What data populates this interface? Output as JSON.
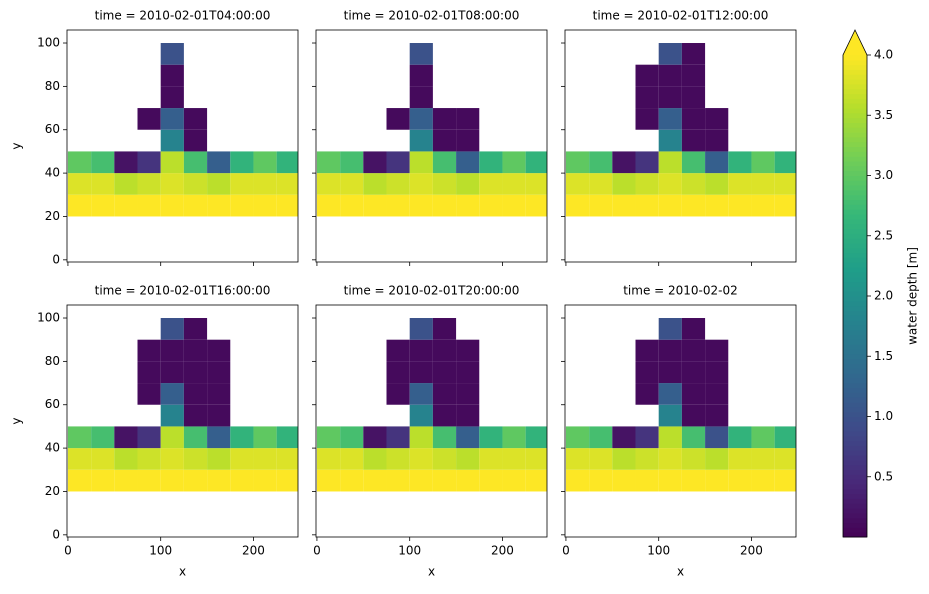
{
  "chart_data": [
    {
      "type": "heatmap",
      "title": "time = 2010-02-01T04:00:00",
      "y_label": "y",
      "xlim": [
        -1,
        248
      ],
      "ylim": [
        -1,
        106
      ],
      "xticks": [
        0,
        100,
        200
      ],
      "yticks": [
        0,
        20,
        40,
        60,
        80,
        100
      ],
      "x_bins": [
        0,
        25,
        50,
        75,
        100,
        125,
        150,
        175,
        200,
        225,
        250
      ],
      "y_bins": [
        20,
        30,
        40,
        50,
        60,
        70,
        80,
        90,
        100
      ],
      "z": [
        [
          4,
          4,
          4,
          4,
          4,
          4,
          4,
          4,
          4,
          4
        ],
        [
          3.8,
          3.8,
          3.6,
          3.7,
          3.8,
          3.7,
          3.6,
          3.8,
          3.8,
          3.8
        ],
        [
          3.0,
          2.8,
          0.2,
          0.6,
          3.6,
          2.8,
          1.2,
          2.6,
          3.0,
          2.6
        ],
        [
          null,
          null,
          null,
          null,
          1.8,
          0.1,
          null,
          null,
          null,
          null
        ],
        [
          null,
          null,
          null,
          0.1,
          1.2,
          0.1,
          null,
          null,
          null,
          null
        ],
        [
          null,
          null,
          null,
          null,
          0.1,
          null,
          null,
          null,
          null,
          null
        ],
        [
          null,
          null,
          null,
          null,
          0.1,
          null,
          null,
          null,
          null,
          null
        ],
        [
          null,
          null,
          null,
          null,
          1.0,
          null,
          null,
          null,
          null,
          null
        ]
      ]
    },
    {
      "type": "heatmap",
      "title": "time = 2010-02-01T08:00:00",
      "xlim": [
        -1,
        248
      ],
      "ylim": [
        -1,
        106
      ],
      "xticks": [
        0,
        100,
        200
      ],
      "yticks": [
        0,
        20,
        40,
        60,
        80,
        100
      ],
      "x_bins": [
        0,
        25,
        50,
        75,
        100,
        125,
        150,
        175,
        200,
        225,
        250
      ],
      "y_bins": [
        20,
        30,
        40,
        50,
        60,
        70,
        80,
        90,
        100
      ],
      "z": [
        [
          4,
          4,
          4,
          4,
          4,
          4,
          4,
          4,
          4,
          4
        ],
        [
          3.8,
          3.8,
          3.6,
          3.7,
          3.8,
          3.7,
          3.6,
          3.8,
          3.8,
          3.8
        ],
        [
          3.0,
          2.8,
          0.2,
          0.6,
          3.6,
          2.8,
          1.2,
          2.6,
          3.0,
          2.6
        ],
        [
          null,
          null,
          null,
          null,
          1.8,
          0.1,
          0.1,
          null,
          null,
          null
        ],
        [
          null,
          null,
          null,
          0.1,
          1.2,
          0.1,
          0.1,
          null,
          null,
          null
        ],
        [
          null,
          null,
          null,
          null,
          0.1,
          null,
          null,
          null,
          null,
          null
        ],
        [
          null,
          null,
          null,
          null,
          0.1,
          null,
          null,
          null,
          null,
          null
        ],
        [
          null,
          null,
          null,
          null,
          1.0,
          null,
          null,
          null,
          null,
          null
        ]
      ]
    },
    {
      "type": "heatmap",
      "title": "time = 2010-02-01T12:00:00",
      "xlim": [
        -1,
        248
      ],
      "ylim": [
        -1,
        106
      ],
      "xticks": [
        0,
        100,
        200
      ],
      "yticks": [
        0,
        20,
        40,
        60,
        80,
        100
      ],
      "x_bins": [
        0,
        25,
        50,
        75,
        100,
        125,
        150,
        175,
        200,
        225,
        250
      ],
      "y_bins": [
        20,
        30,
        40,
        50,
        60,
        70,
        80,
        90,
        100
      ],
      "z": [
        [
          4,
          4,
          4,
          4,
          4,
          4,
          4,
          4,
          4,
          4
        ],
        [
          3.8,
          3.8,
          3.6,
          3.7,
          3.8,
          3.7,
          3.6,
          3.8,
          3.8,
          3.8
        ],
        [
          3.0,
          2.8,
          0.2,
          0.6,
          3.6,
          2.8,
          1.2,
          2.6,
          3.0,
          2.6
        ],
        [
          null,
          null,
          null,
          null,
          1.8,
          0.1,
          0.1,
          null,
          null,
          null
        ],
        [
          null,
          null,
          null,
          0.1,
          1.2,
          0.1,
          0.1,
          null,
          null,
          null
        ],
        [
          null,
          null,
          null,
          0.1,
          0.1,
          0.1,
          null,
          null,
          null,
          null
        ],
        [
          null,
          null,
          null,
          0.1,
          0.1,
          0.1,
          null,
          null,
          null,
          null
        ],
        [
          null,
          null,
          null,
          null,
          1.0,
          0.1,
          null,
          null,
          null,
          null
        ]
      ]
    },
    {
      "type": "heatmap",
      "title": "time = 2010-02-01T16:00:00",
      "x_label": "x",
      "y_label": "y",
      "xlim": [
        -1,
        248
      ],
      "ylim": [
        -1,
        106
      ],
      "xticks": [
        0,
        100,
        200
      ],
      "yticks": [
        0,
        20,
        40,
        60,
        80,
        100
      ],
      "x_bins": [
        0,
        25,
        50,
        75,
        100,
        125,
        150,
        175,
        200,
        225,
        250
      ],
      "y_bins": [
        20,
        30,
        40,
        50,
        60,
        70,
        80,
        90,
        100
      ],
      "z": [
        [
          4,
          4,
          4,
          4,
          4,
          4,
          4,
          4,
          4,
          4
        ],
        [
          3.8,
          3.8,
          3.6,
          3.7,
          3.8,
          3.7,
          3.6,
          3.8,
          3.8,
          3.8
        ],
        [
          3.0,
          2.8,
          0.2,
          0.6,
          3.6,
          2.8,
          1.2,
          2.6,
          3.0,
          2.6
        ],
        [
          null,
          null,
          null,
          null,
          1.8,
          0.1,
          0.1,
          null,
          null,
          null
        ],
        [
          null,
          null,
          null,
          0.1,
          1.2,
          0.1,
          0.1,
          null,
          null,
          null
        ],
        [
          null,
          null,
          null,
          0.1,
          0.1,
          0.1,
          0.1,
          null,
          null,
          null
        ],
        [
          null,
          null,
          null,
          0.1,
          0.1,
          0.1,
          0.1,
          null,
          null,
          null
        ],
        [
          null,
          null,
          null,
          null,
          1.0,
          0.1,
          null,
          null,
          null,
          null
        ]
      ]
    },
    {
      "type": "heatmap",
      "title": "time = 2010-02-01T20:00:00",
      "x_label": "x",
      "xlim": [
        -1,
        248
      ],
      "ylim": [
        -1,
        106
      ],
      "xticks": [
        0,
        100,
        200
      ],
      "yticks": [
        0,
        20,
        40,
        60,
        80,
        100
      ],
      "x_bins": [
        0,
        25,
        50,
        75,
        100,
        125,
        150,
        175,
        200,
        225,
        250
      ],
      "y_bins": [
        20,
        30,
        40,
        50,
        60,
        70,
        80,
        90,
        100
      ],
      "z": [
        [
          4,
          4,
          4,
          4,
          4,
          4,
          4,
          4,
          4,
          4
        ],
        [
          3.8,
          3.8,
          3.6,
          3.7,
          3.8,
          3.7,
          3.6,
          3.8,
          3.8,
          3.8
        ],
        [
          3.0,
          2.8,
          0.2,
          0.6,
          3.6,
          2.8,
          1.2,
          2.6,
          3.0,
          2.6
        ],
        [
          null,
          null,
          null,
          null,
          1.8,
          0.1,
          0.1,
          null,
          null,
          null
        ],
        [
          null,
          null,
          null,
          0.1,
          1.2,
          0.1,
          0.1,
          null,
          null,
          null
        ],
        [
          null,
          null,
          null,
          0.1,
          0.1,
          0.1,
          0.1,
          null,
          null,
          null
        ],
        [
          null,
          null,
          null,
          0.1,
          0.1,
          0.1,
          0.1,
          null,
          null,
          null
        ],
        [
          null,
          null,
          null,
          null,
          1.0,
          0.1,
          null,
          null,
          null,
          null
        ]
      ]
    },
    {
      "type": "heatmap",
      "title": "time = 2010-02-02",
      "x_label": "x",
      "xlim": [
        -1,
        248
      ],
      "ylim": [
        -1,
        106
      ],
      "xticks": [
        0,
        100,
        200
      ],
      "yticks": [
        0,
        20,
        40,
        60,
        80,
        100
      ],
      "x_bins": [
        0,
        25,
        50,
        75,
        100,
        125,
        150,
        175,
        200,
        225,
        250
      ],
      "y_bins": [
        20,
        30,
        40,
        50,
        60,
        70,
        80,
        90,
        100
      ],
      "z": [
        [
          4,
          4,
          4,
          4,
          4,
          4,
          4,
          4,
          4,
          4
        ],
        [
          3.8,
          3.8,
          3.6,
          3.7,
          3.8,
          3.7,
          3.6,
          3.8,
          3.8,
          3.8
        ],
        [
          3.0,
          2.8,
          0.2,
          0.6,
          3.6,
          2.8,
          1.0,
          2.6,
          3.0,
          2.6
        ],
        [
          null,
          null,
          null,
          null,
          1.8,
          0.1,
          0.1,
          null,
          null,
          null
        ],
        [
          null,
          null,
          null,
          0.1,
          1.2,
          0.1,
          0.1,
          null,
          null,
          null
        ],
        [
          null,
          null,
          null,
          0.1,
          0.1,
          0.1,
          0.1,
          null,
          null,
          null
        ],
        [
          null,
          null,
          null,
          0.1,
          0.1,
          0.1,
          0.1,
          null,
          null,
          null
        ],
        [
          null,
          null,
          null,
          null,
          1.0,
          0.1,
          null,
          null,
          null,
          null
        ]
      ]
    },
    {
      "type": "colorbar",
      "label": "water depth [m]",
      "colormap": "viridis",
      "extend": "max",
      "clim": [
        0,
        4
      ],
      "ticks": [
        0.5,
        {
          "value": 1,
          "label": "1.0"
        },
        1.5,
        {
          "value": 2,
          "label": "2.0"
        },
        2.5,
        {
          "value": 3,
          "label": "3.0"
        },
        3.5,
        {
          "value": 4,
          "label": "4.0"
        }
      ]
    }
  ]
}
